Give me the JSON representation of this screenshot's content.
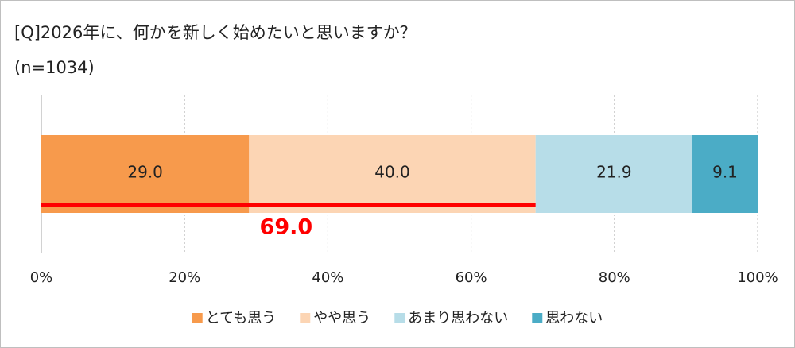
{
  "chart_data": {
    "type": "stacked-bar-horizontal",
    "title": "[Q]2026年に、何かを新しく始めたいと思いますか？",
    "subtitle": "(n=1034)",
    "series": [
      {
        "name": "とても思う",
        "color": "#f79a4c",
        "values": [
          29.0
        ],
        "value_labels": [
          "29.0"
        ]
      },
      {
        "name": "やや思う",
        "color": "#fcd5b4",
        "values": [
          40.0
        ],
        "value_labels": [
          "40.0"
        ]
      },
      {
        "name": "あまり思わない",
        "color": "#b7dde8",
        "values": [
          21.9
        ],
        "value_labels": [
          "21.9"
        ]
      },
      {
        "name": "思わない",
        "color": "#4bacc6",
        "values": [
          9.1
        ],
        "value_labels": [
          "9.1"
        ]
      }
    ],
    "xlim": [
      0,
      100
    ],
    "xticks": [
      {
        "value": 0,
        "label": "0%"
      },
      {
        "value": 20,
        "label": "20%"
      },
      {
        "value": 40,
        "label": "40%"
      },
      {
        "value": 60,
        "label": "60%"
      },
      {
        "value": 80,
        "label": "80%"
      },
      {
        "value": 100,
        "label": "100%"
      }
    ],
    "grid": true,
    "annotation": {
      "value": 69.0,
      "label": "69.0",
      "color": "#ff0000"
    }
  }
}
